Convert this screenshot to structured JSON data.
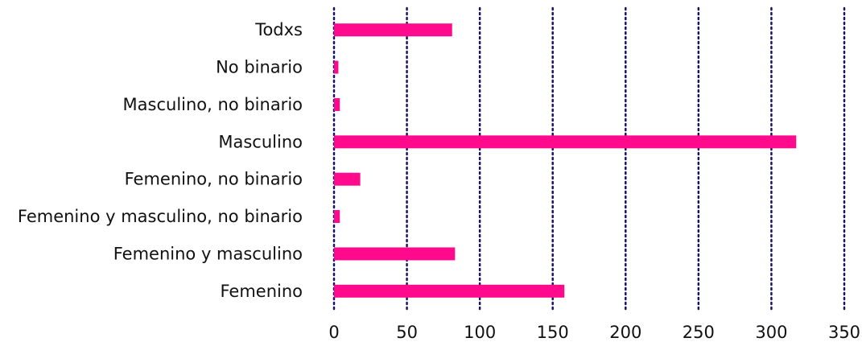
{
  "chart_data": {
    "type": "bar",
    "orientation": "horizontal",
    "categories": [
      "Todxs",
      "No binario",
      "Masculino, no binario",
      "Masculino",
      "Femenino, no binario",
      "Femenino y masculino, no binario",
      "Femenino y masculino",
      "Femenino"
    ],
    "values": [
      81,
      3,
      4,
      317,
      18,
      4,
      83,
      158
    ],
    "xlim": [
      0,
      350
    ],
    "x_ticks": [
      0,
      50,
      100,
      150,
      200,
      250,
      300,
      350
    ],
    "grid": "vertical dotted",
    "title": "",
    "xlabel": "",
    "ylabel": "",
    "colors": {
      "bar": "#ff0a8c",
      "grid": "#1a1464"
    }
  }
}
